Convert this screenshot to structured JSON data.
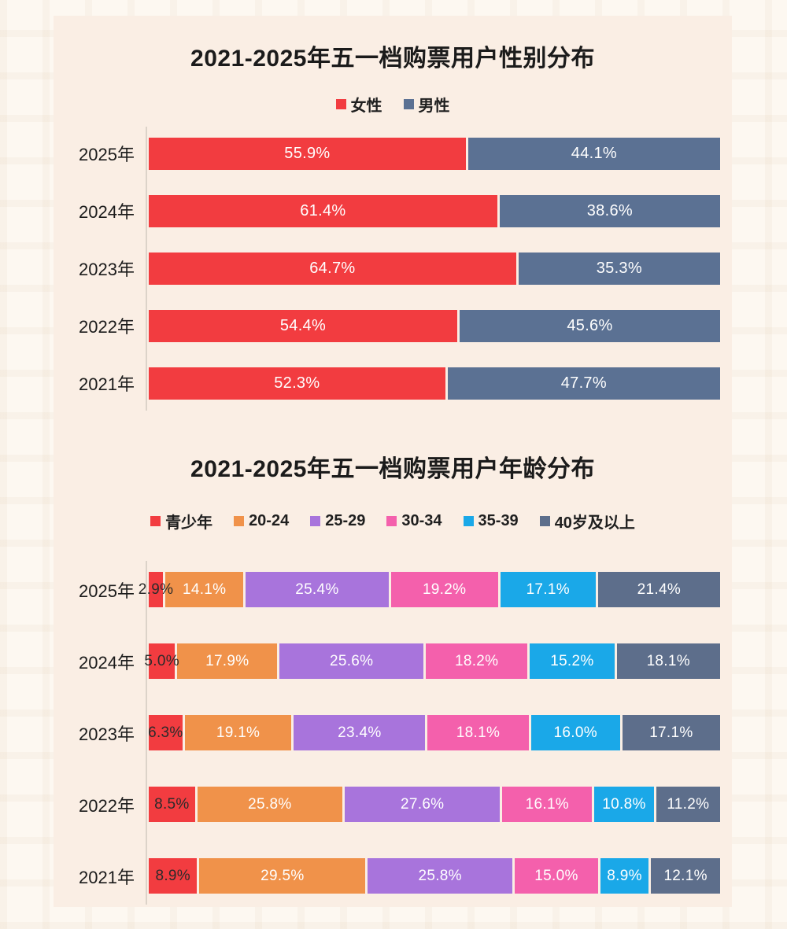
{
  "chart_data": [
    {
      "type": "bar",
      "variant": "horizontal-stacked",
      "title": "2021-2025年五一档购票用户性别分布",
      "categories": [
        "2025年",
        "2024年",
        "2023年",
        "2022年",
        "2021年"
      ],
      "series": [
        {
          "name": "女性",
          "color": "#f23c40",
          "label_color": "#ffffff",
          "values": [
            "55.9",
            "61.4",
            "64.7",
            "54.4",
            "52.3"
          ]
        },
        {
          "name": "男性",
          "color": "#5b7193",
          "label_color": "#ffffff",
          "values": [
            "44.1",
            "38.6",
            "35.3",
            "45.6",
            "47.7"
          ]
        }
      ],
      "value_suffix": "%",
      "xlim": [
        0,
        100
      ],
      "legend_position": "top",
      "grid": false
    },
    {
      "type": "bar",
      "variant": "horizontal-stacked",
      "title": "2021-2025年五一档购票用户年龄分布",
      "categories": [
        "2025年",
        "2024年",
        "2023年",
        "2022年",
        "2021年"
      ],
      "series": [
        {
          "name": "青少年",
          "color": "#f23c40",
          "label_color": "#2b2b2b",
          "values": [
            "2.9",
            "5.0",
            "6.3",
            "8.5",
            "8.9"
          ]
        },
        {
          "name": "20-24",
          "color": "#f0924a",
          "label_color": "#ffffff",
          "values": [
            "14.1",
            "17.9",
            "19.1",
            "25.8",
            "29.5"
          ]
        },
        {
          "name": "25-29",
          "color": "#a874dc",
          "label_color": "#ffffff",
          "values": [
            "25.4",
            "25.6",
            "23.4",
            "27.6",
            "25.8"
          ]
        },
        {
          "name": "30-34",
          "color": "#f460ac",
          "label_color": "#ffffff",
          "values": [
            "19.2",
            "18.2",
            "18.1",
            "16.1",
            "15.0"
          ]
        },
        {
          "name": "35-39",
          "color": "#1aa8e8",
          "label_color": "#ffffff",
          "values": [
            "17.1",
            "15.2",
            "16.0",
            "10.8",
            "8.9"
          ]
        },
        {
          "name": "40岁及以上",
          "color": "#5d6e8b",
          "label_color": "#ffffff",
          "values": [
            "21.4",
            "18.1",
            "17.1",
            "11.2",
            "12.1"
          ]
        }
      ],
      "value_suffix": "%",
      "xlim": [
        0,
        100
      ],
      "legend_position": "top",
      "grid": false
    }
  ]
}
